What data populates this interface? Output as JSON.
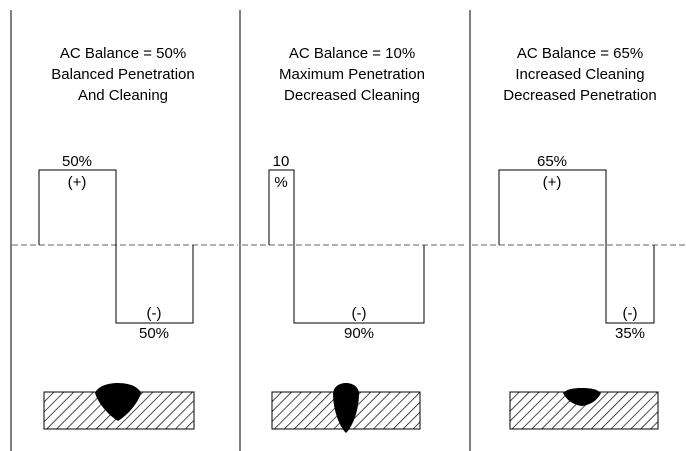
{
  "panels": [
    {
      "title_lines": [
        "AC Balance = 50%",
        "Balanced Penetration",
        "And Cleaning"
      ],
      "positive_label_lines": [
        "50%",
        "(+)"
      ],
      "negative_label_lines": [
        "(-)",
        "50%"
      ],
      "positive_percent": 50,
      "negative_percent": 50,
      "weld_shape": "wide-shallow"
    },
    {
      "title_lines": [
        "AC Balance = 10%",
        "Maximum Penetration",
        "Decreased Cleaning"
      ],
      "positive_label_lines": [
        "10",
        "%"
      ],
      "negative_label_lines": [
        "(-)",
        "90%"
      ],
      "positive_percent": 10,
      "negative_percent": 90,
      "weld_shape": "narrow-deep"
    },
    {
      "title_lines": [
        "AC Balance = 65%",
        "Increased Cleaning",
        "Decreased Penetration"
      ],
      "positive_label_lines": [
        "65%",
        "(+)"
      ],
      "negative_label_lines": [
        "(-)",
        "35%"
      ],
      "positive_percent": 65,
      "negative_percent": 35,
      "weld_shape": "wide-very-shallow"
    }
  ]
}
